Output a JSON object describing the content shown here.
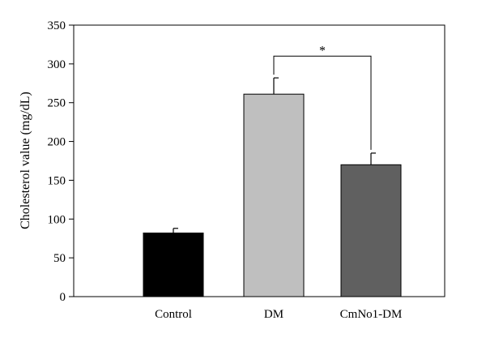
{
  "chart_data": {
    "type": "bar",
    "categories": [
      "Control",
      "DM",
      "CmNo1-DM"
    ],
    "values": [
      82,
      261,
      170
    ],
    "errors": [
      6,
      21,
      15
    ],
    "colors": [
      "#000000",
      "#bfbfbf",
      "#606060"
    ],
    "ylabel": "Cholesterol value (mg/dL)",
    "xlabel": "",
    "ylim": [
      0,
      350
    ],
    "yticks": [
      0,
      50,
      100,
      150,
      200,
      250,
      300,
      350
    ],
    "ytick_labels": [
      "0",
      "50",
      "100",
      "150",
      "200",
      "250",
      "300",
      "350"
    ],
    "grid": false,
    "significance": {
      "from": "DM",
      "to": "CmNo1-DM",
      "label": "*",
      "bracket_value": 310
    }
  }
}
